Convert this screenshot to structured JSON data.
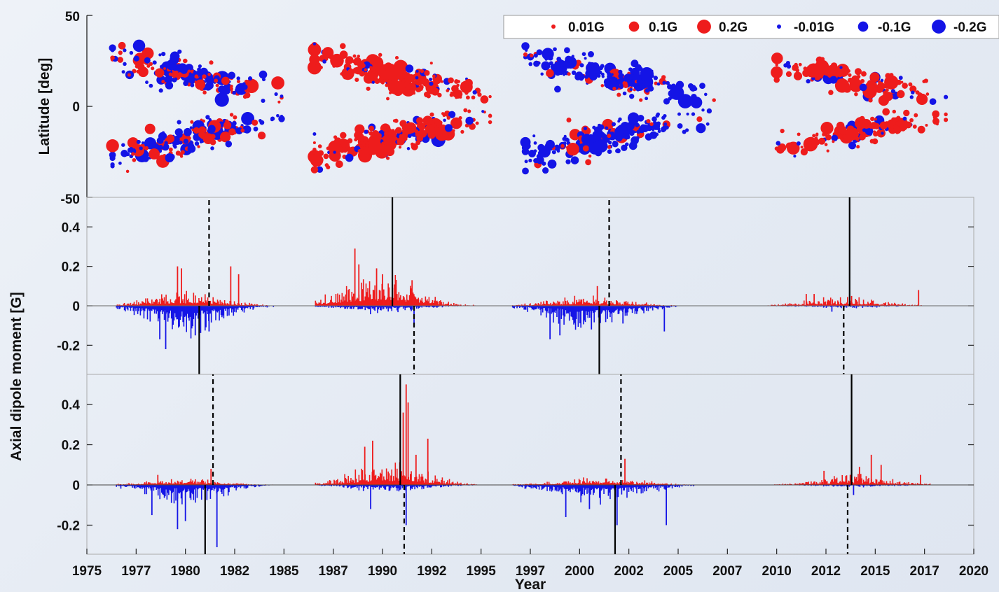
{
  "colors": {
    "positive": "#ee1c1c",
    "negative": "#1414e6",
    "axis": "#222222",
    "marker_line": "#000000"
  },
  "chart_data": [
    {
      "type": "scatter",
      "description": "Butterfly diagram of bipolar active region axial dipole contributions",
      "ylabel": "Latitude [deg]",
      "xlim": [
        1975,
        2020
      ],
      "ylim": [
        -50,
        50
      ],
      "yticks": [
        "50",
        "0",
        "-50"
      ],
      "legend_position": "top-right",
      "legend": [
        {
          "label": "0.01G",
          "color": "#ee1c1c",
          "value": 0.01
        },
        {
          "label": "0.1G",
          "color": "#ee1c1c",
          "value": 0.1
        },
        {
          "label": "0.2G",
          "color": "#ee1c1c",
          "value": 0.2
        },
        {
          "label": "-0.01G",
          "color": "#1414e6",
          "value": -0.01
        },
        {
          "label": "-0.1G",
          "color": "#1414e6",
          "value": -0.1
        },
        {
          "label": "-0.2G",
          "color": "#1414e6",
          "value": -0.2
        }
      ],
      "clusters": [
        {
          "x": 1980.2,
          "y": 17,
          "sx": 2.0,
          "sy": 7,
          "spread_x": 2.6,
          "n": 190,
          "pos": 0.4,
          "tilt": -2.5
        },
        {
          "x": 1980.2,
          "y": -17,
          "sx": 2.0,
          "sy": 7,
          "spread_x": 2.6,
          "n": 190,
          "pos": 0.4,
          "tilt": 2.5
        },
        {
          "x": 1990.6,
          "y": 17,
          "sx": 2.2,
          "sy": 7,
          "spread_x": 2.7,
          "n": 230,
          "pos": 0.82,
          "tilt": -2.5
        },
        {
          "x": 1990.6,
          "y": -17,
          "sx": 2.2,
          "sy": 7,
          "spread_x": 2.7,
          "n": 230,
          "pos": 0.82,
          "tilt": 2.5
        },
        {
          "x": 2001.6,
          "y": 16,
          "sx": 2.3,
          "sy": 7,
          "spread_x": 2.9,
          "n": 210,
          "pos": 0.18,
          "tilt": -2.3
        },
        {
          "x": 2001.6,
          "y": -16,
          "sx": 2.3,
          "sy": 7,
          "spread_x": 2.9,
          "n": 210,
          "pos": 0.18,
          "tilt": 2.3
        },
        {
          "x": 2013.9,
          "y": 14,
          "sx": 2.0,
          "sy": 6,
          "spread_x": 2.6,
          "n": 150,
          "pos": 0.85,
          "tilt": -2.0
        },
        {
          "x": 2013.9,
          "y": -14,
          "sx": 2.0,
          "sy": 6,
          "spread_x": 2.6,
          "n": 150,
          "pos": 0.85,
          "tilt": 2.0
        }
      ]
    },
    {
      "type": "bar",
      "ylim": [
        -0.35,
        0.55
      ],
      "yticks": [
        0.4,
        0.2,
        0,
        -0.2
      ],
      "cycles": [
        {
          "start": 1976.5,
          "end": 1984.5,
          "peak": 1980.0,
          "pos": 0.06,
          "neg": 0.12,
          "spikes": [
            [
              1979.6,
              0.2
            ],
            [
              1979.8,
              0.19
            ],
            [
              1982.3,
              0.2
            ],
            [
              1982.7,
              0.16
            ],
            [
              1979.0,
              -0.22
            ],
            [
              1978.7,
              -0.17
            ],
            [
              1980.5,
              -0.15
            ],
            [
              1981.2,
              -0.13
            ]
          ]
        },
        {
          "start": 1986.6,
          "end": 1994.8,
          "peak": 1989.8,
          "pos": 0.13,
          "neg": 0.03,
          "spikes": [
            [
              1988.6,
              0.29
            ],
            [
              1988.8,
              0.21
            ],
            [
              1989.7,
              0.19
            ],
            [
              1990.0,
              0.16
            ],
            [
              1991.5,
              0.13
            ],
            [
              1991.6,
              -0.11
            ]
          ]
        },
        {
          "start": 1996.6,
          "end": 2005.0,
          "peak": 2000.5,
          "pos": 0.04,
          "neg": 0.1,
          "spikes": [
            [
              1998.5,
              -0.17
            ],
            [
              1999.0,
              -0.15
            ],
            [
              2000.6,
              -0.12
            ],
            [
              2004.3,
              -0.13
            ],
            [
              2002.2,
              -0.09
            ],
            [
              2000.9,
              0.1
            ]
          ]
        },
        {
          "start": 2009.5,
          "end": 2018.0,
          "peak": 2013.3,
          "pos": 0.035,
          "neg": 0.01,
          "spikes": [
            [
              2011.5,
              0.06
            ],
            [
              2011.9,
              0.06
            ],
            [
              2013.8,
              0.05
            ],
            [
              2017.2,
              0.08
            ],
            [
              2012.8,
              -0.03
            ]
          ]
        }
      ],
      "solid_lines": [
        [
          1980.7,
          "down"
        ],
        [
          1990.5,
          "up"
        ],
        [
          2001.0,
          "down"
        ],
        [
          2013.7,
          "up"
        ]
      ],
      "dashed_lines": [
        [
          1981.2,
          "up"
        ],
        [
          1991.6,
          "down"
        ],
        [
          2001.5,
          "up"
        ],
        [
          2013.4,
          "down"
        ]
      ]
    },
    {
      "type": "bar",
      "ylim": [
        -0.35,
        0.55
      ],
      "yticks": [
        0.4,
        0.2,
        0,
        -0.2
      ],
      "cycles": [
        {
          "start": 1976.5,
          "end": 1984.5,
          "peak": 1980.0,
          "pos": 0.03,
          "neg": 0.08,
          "spikes": [
            [
              1979.6,
              -0.22
            ],
            [
              1980.0,
              -0.18
            ],
            [
              1981.6,
              -0.31
            ],
            [
              1978.3,
              -0.15
            ],
            [
              1981.3,
              0.08
            ],
            [
              1978.6,
              0.05
            ]
          ]
        },
        {
          "start": 1986.6,
          "end": 1994.8,
          "peak": 1990.4,
          "pos": 0.09,
          "neg": 0.03,
          "spikes": [
            [
              1991.2,
              0.5
            ],
            [
              1991.3,
              0.41
            ],
            [
              1991.05,
              0.36
            ],
            [
              1989.5,
              0.22
            ],
            [
              1992.3,
              0.23
            ],
            [
              1991.7,
              0.15
            ],
            [
              1989.1,
              0.19
            ],
            [
              1991.2,
              -0.2
            ],
            [
              1989.4,
              -0.12
            ]
          ]
        },
        {
          "start": 1996.6,
          "end": 2006.0,
          "peak": 2001.0,
          "pos": 0.03,
          "neg": 0.07,
          "spikes": [
            [
              2001.8,
              -0.27
            ],
            [
              2001.9,
              -0.2
            ],
            [
              2004.4,
              -0.2
            ],
            [
              1999.3,
              -0.16
            ],
            [
              2002.3,
              0.13
            ],
            [
              2000.5,
              -0.12
            ]
          ]
        },
        {
          "start": 2009.5,
          "end": 2017.8,
          "peak": 2014.0,
          "pos": 0.04,
          "neg": 0.01,
          "spikes": [
            [
              2014.8,
              0.15
            ],
            [
              2014.2,
              0.09
            ],
            [
              2015.3,
              0.1
            ],
            [
              2012.4,
              0.07
            ],
            [
              2017.3,
              0.05
            ],
            [
              2013.9,
              -0.05
            ]
          ]
        }
      ],
      "solid_lines": [
        [
          1981.0,
          "down"
        ],
        [
          1990.9,
          "up"
        ],
        [
          2001.8,
          "down"
        ],
        [
          2013.8,
          "up"
        ]
      ],
      "dashed_lines": [
        [
          1981.4,
          "up"
        ],
        [
          1991.1,
          "down"
        ],
        [
          2002.1,
          "up"
        ],
        [
          2013.6,
          "down"
        ]
      ]
    }
  ],
  "shared_axis": {
    "ylabel_bottom": "Axial dipole moment [G]",
    "xlabel": "Year",
    "xtick_labels": [
      "1975",
      "1977",
      "1980",
      "1982",
      "1985",
      "1987",
      "1990",
      "1992",
      "1995",
      "1997",
      "2000",
      "2002",
      "2005",
      "2007",
      "2010",
      "2012",
      "2015",
      "2017",
      "2020"
    ]
  }
}
